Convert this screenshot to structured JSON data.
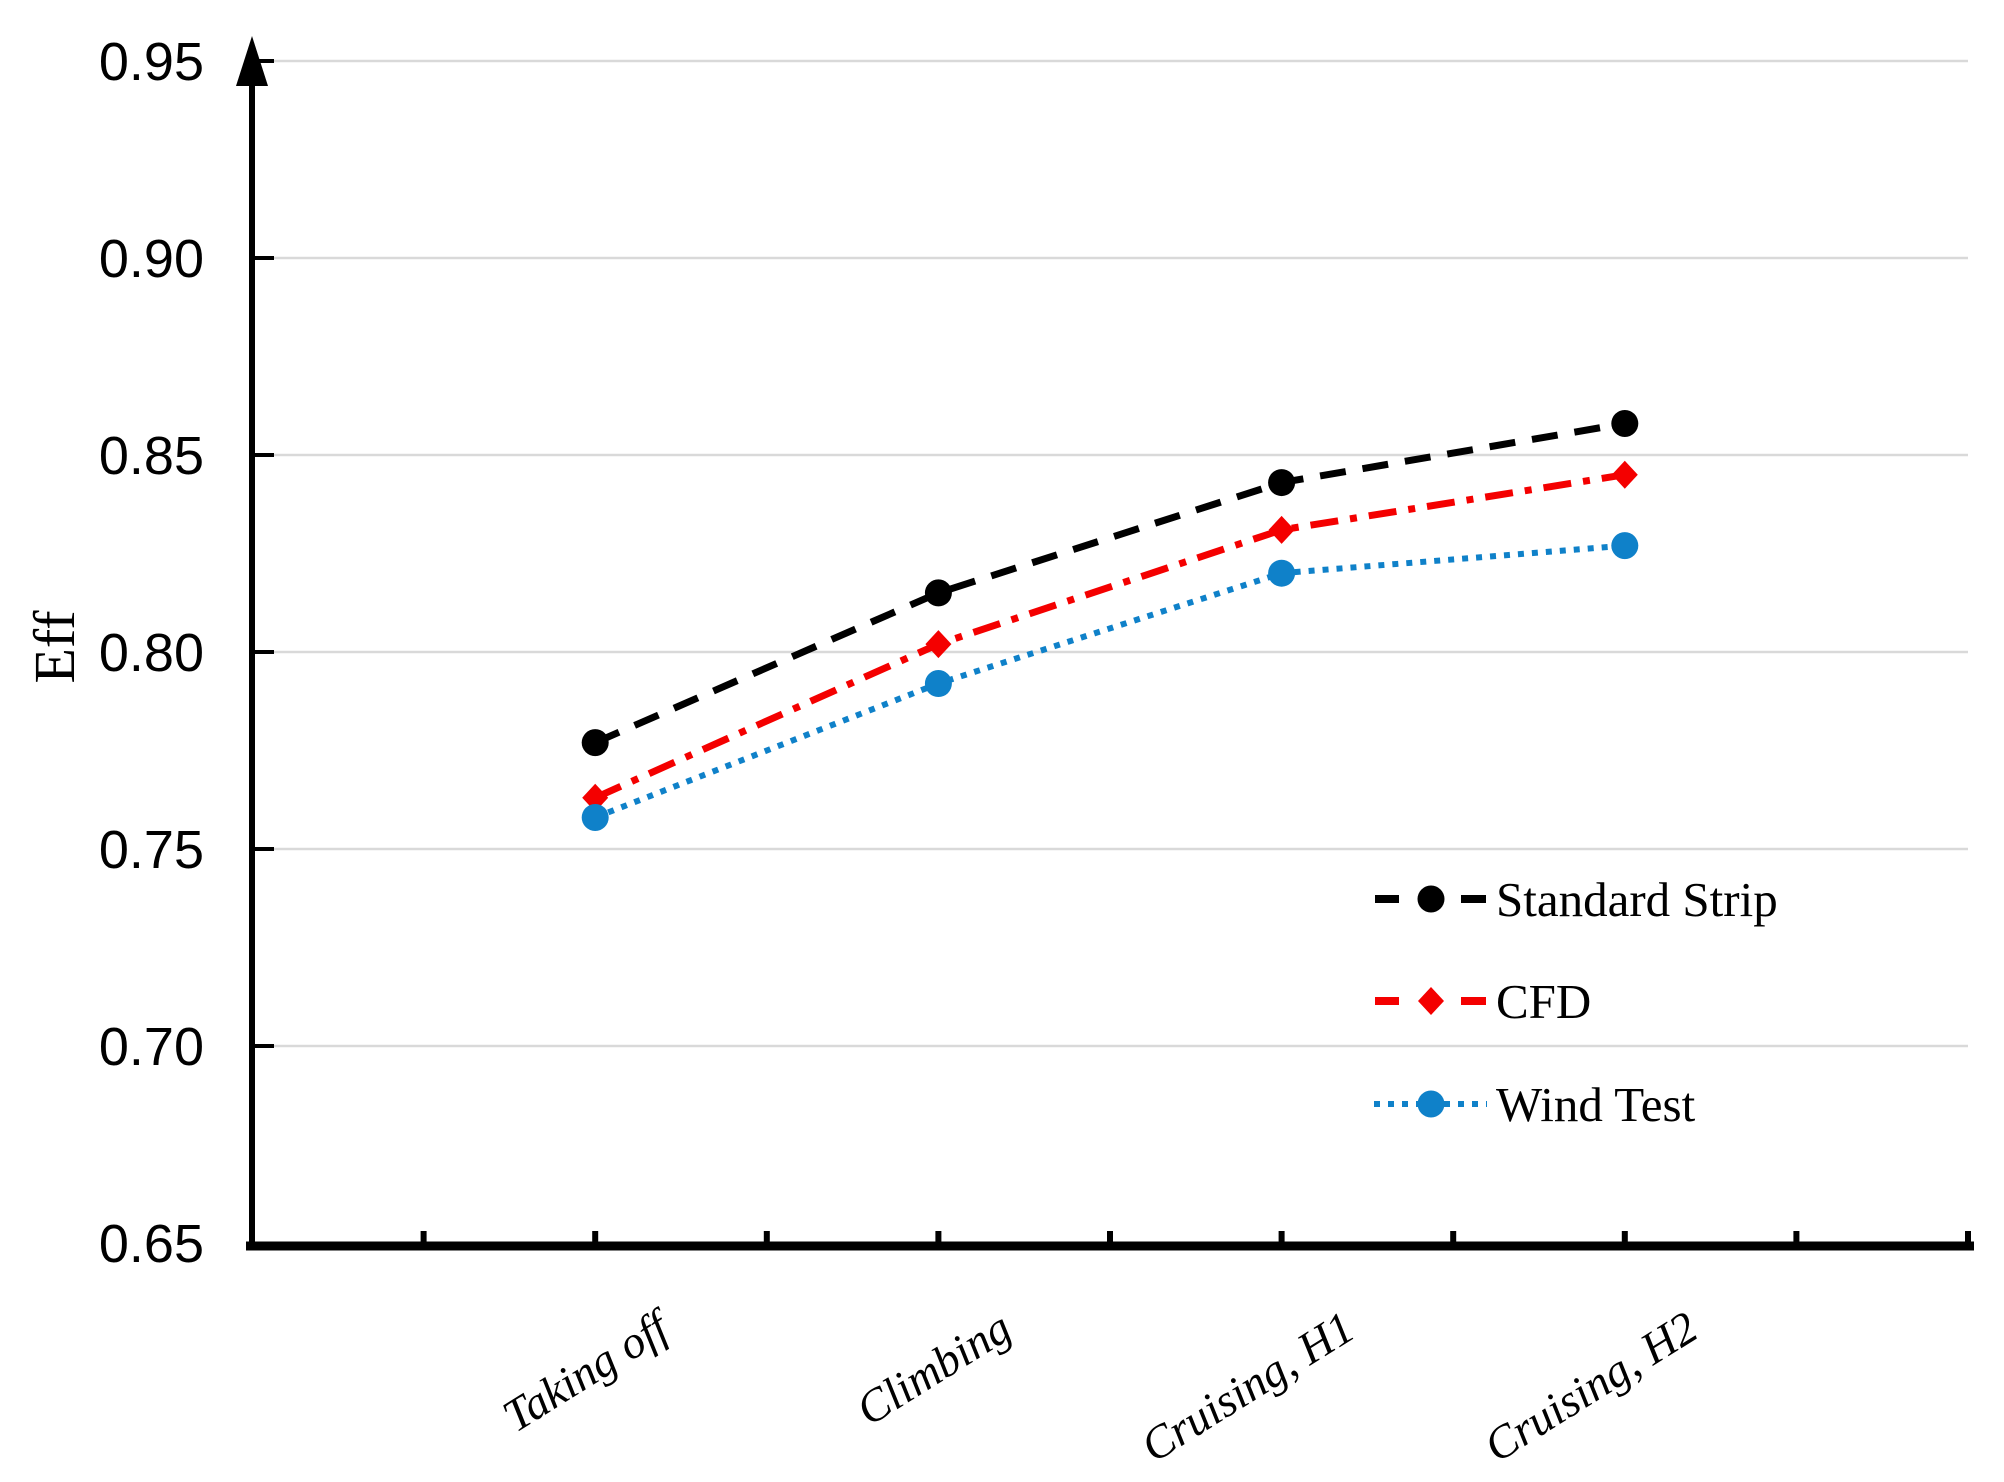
{
  "figure": {
    "background": "#ffffff",
    "y_axis_title": "Eff"
  },
  "chart_data": {
    "type": "line",
    "title": "",
    "xlabel": "",
    "ylabel": "Eff",
    "categories": [
      "Taking off",
      "Climbing",
      "Cruising, H1",
      "Cruising, H2"
    ],
    "series": [
      {
        "name": "Standard Strip",
        "values": [
          0.777,
          0.815,
          0.843,
          0.858
        ],
        "color": "#000000",
        "line_style": "dashed",
        "marker": "circle"
      },
      {
        "name": "CFD",
        "values": [
          0.763,
          0.802,
          0.831,
          0.845
        ],
        "color": "#f40000",
        "line_style": "dash-dot",
        "marker": "diamond"
      },
      {
        "name": "Wind Test",
        "values": [
          0.758,
          0.792,
          0.82,
          0.827
        ],
        "color": "#0f81c9",
        "line_style": "dotted",
        "marker": "circle"
      }
    ],
    "ylim": [
      0.65,
      0.95
    ],
    "ytick_step": 0.05,
    "ytick_labels": [
      "0.65",
      "0.70",
      "0.75",
      "0.80",
      "0.85",
      "0.90",
      "0.95"
    ],
    "grid": "horizontal",
    "gridline_color": "#d9d9d9",
    "axis_color": "#000000",
    "legend_position": "inside-bottom-right",
    "y_axis_has_arrow": true
  }
}
